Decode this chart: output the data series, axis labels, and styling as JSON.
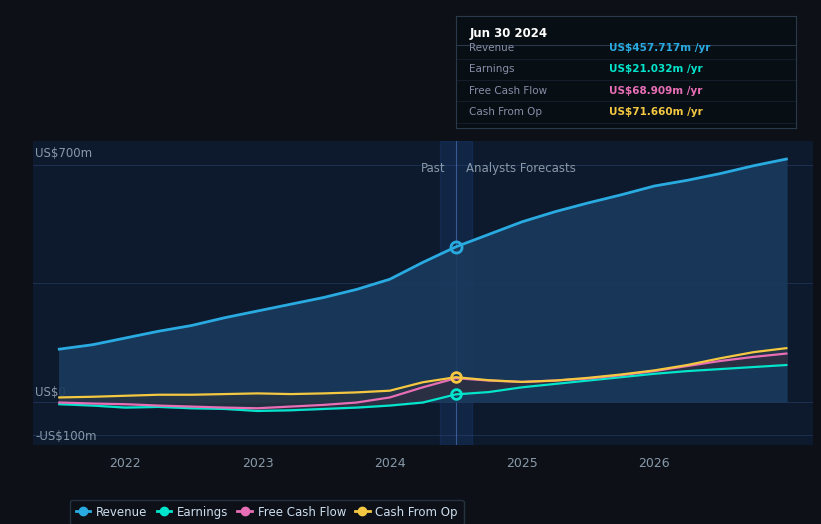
{
  "bg_color": "#0d1117",
  "plot_bg_color": "#0d1a2d",
  "grid_color": "#1e3050",
  "ylabel_700": "US$700m",
  "ylabel_0": "US$0",
  "ylabel_neg100": "-US$100m",
  "past_label": "Past",
  "forecast_label": "Analysts Forecasts",
  "divider_x": 2024.5,
  "x_ticks": [
    2022,
    2023,
    2024,
    2025,
    2026
  ],
  "ylim": [
    -130,
    770
  ],
  "xlim": [
    2021.3,
    2027.2
  ],
  "revenue_color": "#29abe2",
  "earnings_color": "#00e5cc",
  "fcf_color": "#e86eb5",
  "cashop_color": "#f5c842",
  "fill_revenue_color": "#1a3a5c",
  "tooltip_bg": "#070e14",
  "tooltip_border": "#2a3a4a",
  "tooltip_title": "Jun 30 2024",
  "tooltip_revenue_label": "Revenue",
  "tooltip_revenue_value": "US$457.717m",
  "tooltip_earnings_label": "Earnings",
  "tooltip_earnings_value": "US$21.032m",
  "tooltip_fcf_label": "Free Cash Flow",
  "tooltip_fcf_value": "US$68.909m",
  "tooltip_cashop_label": "Cash From Op",
  "tooltip_cashop_value": "US$71.660m",
  "legend_labels": [
    "Revenue",
    "Earnings",
    "Free Cash Flow",
    "Cash From Op"
  ],
  "legend_colors": [
    "#29abe2",
    "#00e5cc",
    "#e86eb5",
    "#f5c842"
  ],
  "revenue_x": [
    2021.5,
    2021.75,
    2022.0,
    2022.25,
    2022.5,
    2022.75,
    2023.0,
    2023.25,
    2023.5,
    2023.75,
    2024.0,
    2024.25,
    2024.5,
    2024.75,
    2025.0,
    2025.25,
    2025.5,
    2025.75,
    2026.0,
    2026.25,
    2026.5,
    2026.75,
    2027.0
  ],
  "revenue_y": [
    155,
    168,
    188,
    208,
    225,
    248,
    268,
    288,
    308,
    332,
    362,
    412,
    458,
    495,
    532,
    562,
    588,
    612,
    638,
    655,
    675,
    698,
    718
  ],
  "earnings_x": [
    2021.5,
    2021.75,
    2022.0,
    2022.25,
    2022.5,
    2022.75,
    2023.0,
    2023.25,
    2023.5,
    2023.75,
    2024.0,
    2024.25,
    2024.5,
    2024.75,
    2025.0,
    2025.25,
    2025.5,
    2025.75,
    2026.0,
    2026.25,
    2026.5,
    2026.75,
    2027.0
  ],
  "earnings_y": [
    -8,
    -12,
    -18,
    -16,
    -20,
    -22,
    -28,
    -26,
    -22,
    -18,
    -12,
    -3,
    21,
    28,
    42,
    52,
    62,
    72,
    82,
    90,
    96,
    102,
    108
  ],
  "fcf_x": [
    2021.5,
    2021.75,
    2022.0,
    2022.25,
    2022.5,
    2022.75,
    2023.0,
    2023.25,
    2023.5,
    2023.75,
    2024.0,
    2024.25,
    2024.5,
    2024.75,
    2025.0,
    2025.25,
    2025.5,
    2025.75,
    2026.0,
    2026.25,
    2026.5,
    2026.75,
    2027.0
  ],
  "fcf_y": [
    -3,
    -6,
    -8,
    -12,
    -15,
    -18,
    -20,
    -15,
    -10,
    -3,
    12,
    42,
    69,
    62,
    58,
    62,
    68,
    78,
    90,
    105,
    120,
    132,
    142
  ],
  "cashop_x": [
    2021.5,
    2021.75,
    2022.0,
    2022.25,
    2022.5,
    2022.75,
    2023.0,
    2023.25,
    2023.5,
    2023.75,
    2024.0,
    2024.25,
    2024.5,
    2024.75,
    2025.0,
    2025.25,
    2025.5,
    2025.75,
    2026.0,
    2026.25,
    2026.5,
    2026.75,
    2027.0
  ],
  "cashop_y": [
    12,
    14,
    17,
    20,
    20,
    22,
    24,
    22,
    24,
    27,
    32,
    57,
    72,
    63,
    58,
    62,
    70,
    80,
    92,
    108,
    128,
    146,
    158
  ]
}
